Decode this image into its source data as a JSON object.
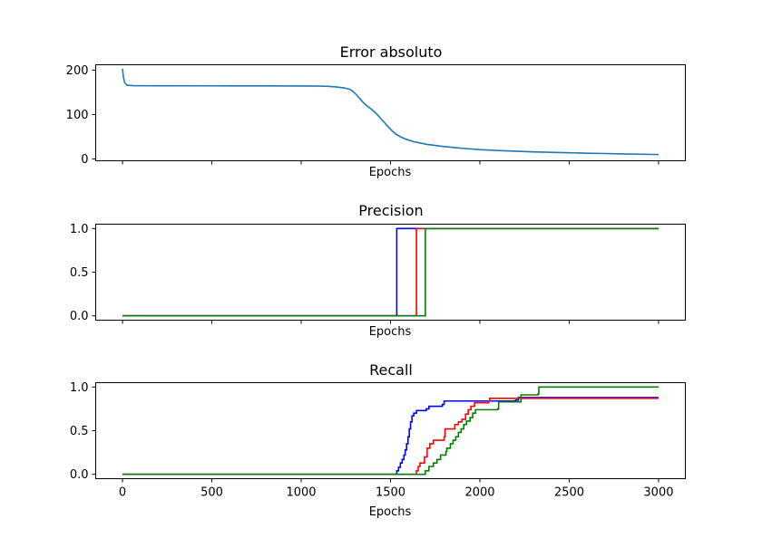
{
  "chart_data": [
    {
      "type": "line",
      "title": "Error absoluto",
      "xlabel": "Epochs",
      "ylabel": "",
      "xlim": [
        -150,
        3150
      ],
      "ylim": [
        -4,
        212
      ],
      "xticks": [
        0,
        500,
        1000,
        1500,
        2000,
        2500,
        3000
      ],
      "show_xtick_labels": false,
      "yticks": [
        0,
        100,
        200
      ],
      "ytick_labels": [
        "0",
        "100",
        "200"
      ],
      "grid": false,
      "series": [
        {
          "color": "#1f77b4",
          "step": false,
          "points": [
            [
              0,
              203
            ],
            [
              5,
              185
            ],
            [
              12,
              172
            ],
            [
              25,
              166
            ],
            [
              60,
              165
            ],
            [
              200,
              164.8
            ],
            [
              500,
              164.6
            ],
            [
              800,
              164.4
            ],
            [
              1000,
              164.2
            ],
            [
              1100,
              164
            ],
            [
              1150,
              163.5
            ],
            [
              1200,
              162
            ],
            [
              1240,
              160
            ],
            [
              1270,
              157
            ],
            [
              1290,
              152
            ],
            [
              1310,
              144
            ],
            [
              1330,
              135
            ],
            [
              1350,
              126
            ],
            [
              1370,
              119
            ],
            [
              1390,
              113
            ],
            [
              1410,
              106
            ],
            [
              1430,
              98
            ],
            [
              1450,
              89
            ],
            [
              1470,
              80
            ],
            [
              1490,
              71
            ],
            [
              1510,
              63
            ],
            [
              1530,
              56
            ],
            [
              1560,
              49
            ],
            [
              1590,
              44
            ],
            [
              1630,
              39
            ],
            [
              1700,
              33
            ],
            [
              1800,
              28
            ],
            [
              1900,
              24
            ],
            [
              2000,
              21
            ],
            [
              2100,
              19
            ],
            [
              2200,
              17.5
            ],
            [
              2300,
              16
            ],
            [
              2400,
              15
            ],
            [
              2500,
              14
            ],
            [
              2600,
              13
            ],
            [
              2700,
              12.3
            ],
            [
              2800,
              11.5
            ],
            [
              2900,
              10.8
            ],
            [
              3000,
              10
            ]
          ]
        }
      ]
    },
    {
      "type": "line",
      "title": "Precision",
      "xlabel": "Epochs",
      "ylabel": "",
      "xlim": [
        -150,
        3150
      ],
      "ylim": [
        -0.05,
        1.05
      ],
      "xticks": [
        0,
        500,
        1000,
        1500,
        2000,
        2500,
        3000
      ],
      "show_xtick_labels": false,
      "yticks": [
        0,
        0.5,
        1
      ],
      "ytick_labels": [
        "0.0",
        "0.5",
        "1.0"
      ],
      "grid": false,
      "series": [
        {
          "color": "#0000ff",
          "step": true,
          "points": [
            [
              0,
              0
            ],
            [
              1535,
              0
            ],
            [
              1535,
              1
            ],
            [
              3000,
              1
            ]
          ]
        },
        {
          "color": "#ff0000",
          "step": true,
          "points": [
            [
              0,
              0
            ],
            [
              1645,
              0
            ],
            [
              1645,
              1
            ],
            [
              3000,
              1
            ]
          ]
        },
        {
          "color": "#008000",
          "step": true,
          "points": [
            [
              0,
              0
            ],
            [
              1695,
              0
            ],
            [
              1695,
              1
            ],
            [
              3000,
              1
            ]
          ]
        }
      ]
    },
    {
      "type": "line",
      "title": "Recall",
      "xlabel": "Epochs",
      "ylabel": "",
      "xlim": [
        -150,
        3150
      ],
      "ylim": [
        -0.05,
        1.05
      ],
      "xticks": [
        0,
        500,
        1000,
        1500,
        2000,
        2500,
        3000
      ],
      "xtick_labels": [
        "0",
        "500",
        "1000",
        "1500",
        "2000",
        "2500",
        "3000"
      ],
      "show_xtick_labels": true,
      "yticks": [
        0,
        0.5,
        1
      ],
      "ytick_labels": [
        "0.0",
        "0.5",
        "1.0"
      ],
      "grid": false,
      "series": [
        {
          "color": "#0000ff",
          "step": true,
          "points": [
            [
              0,
              0
            ],
            [
              1535,
              0
            ],
            [
              1535,
              0.04
            ],
            [
              1545,
              0.08
            ],
            [
              1555,
              0.13
            ],
            [
              1565,
              0.17
            ],
            [
              1575,
              0.22
            ],
            [
              1582,
              0.28
            ],
            [
              1590,
              0.35
            ],
            [
              1598,
              0.43
            ],
            [
              1605,
              0.52
            ],
            [
              1612,
              0.6
            ],
            [
              1620,
              0.67
            ],
            [
              1630,
              0.7
            ],
            [
              1645,
              0.73
            ],
            [
              1700,
              0.75
            ],
            [
              1715,
              0.78
            ],
            [
              1790,
              0.8
            ],
            [
              1800,
              0.84
            ],
            [
              2200,
              0.85
            ],
            [
              2215,
              0.88
            ],
            [
              3000,
              0.88
            ]
          ]
        },
        {
          "color": "#ff0000",
          "step": true,
          "points": [
            [
              0,
              0
            ],
            [
              1645,
              0
            ],
            [
              1645,
              0.04
            ],
            [
              1655,
              0.09
            ],
            [
              1665,
              0.13
            ],
            [
              1690,
              0.2
            ],
            [
              1705,
              0.3
            ],
            [
              1720,
              0.35
            ],
            [
              1740,
              0.39
            ],
            [
              1800,
              0.43
            ],
            [
              1805,
              0.52
            ],
            [
              1860,
              0.57
            ],
            [
              1880,
              0.6
            ],
            [
              1900,
              0.63
            ],
            [
              1920,
              0.69
            ],
            [
              1935,
              0.74
            ],
            [
              1950,
              0.78
            ],
            [
              1970,
              0.82
            ],
            [
              2050,
              0.84
            ],
            [
              2055,
              0.87
            ],
            [
              3000,
              0.87
            ]
          ]
        },
        {
          "color": "#008000",
          "step": true,
          "points": [
            [
              0,
              0
            ],
            [
              1695,
              0
            ],
            [
              1695,
              0.04
            ],
            [
              1715,
              0.09
            ],
            [
              1740,
              0.13
            ],
            [
              1760,
              0.17
            ],
            [
              1780,
              0.22
            ],
            [
              1810,
              0.26
            ],
            [
              1815,
              0.3
            ],
            [
              1835,
              0.35
            ],
            [
              1850,
              0.39
            ],
            [
              1865,
              0.43
            ],
            [
              1880,
              0.48
            ],
            [
              1895,
              0.52
            ],
            [
              1910,
              0.57
            ],
            [
              1925,
              0.61
            ],
            [
              1945,
              0.65
            ],
            [
              1960,
              0.7
            ],
            [
              1975,
              0.74
            ],
            [
              2100,
              0.75
            ],
            [
              2105,
              0.83
            ],
            [
              2225,
              0.83
            ],
            [
              2230,
              0.91
            ],
            [
              2325,
              0.92
            ],
            [
              2330,
              1
            ],
            [
              3000,
              1
            ]
          ]
        }
      ]
    }
  ]
}
